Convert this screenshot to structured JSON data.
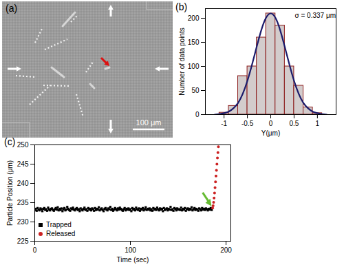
{
  "image": {
    "label": "(a)",
    "scale_bar": "100 μm"
  },
  "chart_data": [
    {
      "type": "histogram",
      "title": "(b)",
      "x_label": "Y(μm)",
      "y_label": "Number of data points",
      "bins": [
        -1.1,
        -0.9,
        -0.7,
        -0.5,
        -0.3,
        -0.1,
        0.1,
        0.3,
        0.5,
        0.7,
        0.9,
        1.1
      ],
      "counts": [
        4,
        18,
        80,
        100,
        160,
        210,
        185,
        100,
        60,
        15,
        3
      ],
      "color": "#d3cccc",
      "fit": {
        "x": [
          -1.2,
          -1.1,
          -1.0,
          -0.9,
          -0.8,
          -0.7,
          -0.6,
          -0.5,
          -0.4,
          -0.3,
          -0.2,
          -0.1,
          0,
          0.1,
          0.2,
          0.3,
          0.4,
          0.5,
          0.6,
          0.7,
          0.8,
          0.9,
          1.0,
          1.1,
          1.2
        ],
        "values": [
          0,
          1,
          3,
          6,
          13,
          24,
          43,
          70,
          104,
          141,
          176,
          201,
          210,
          201,
          176,
          141,
          104,
          70,
          43,
          24,
          13,
          6,
          3,
          1,
          0
        ],
        "color": "#1b1b6b"
      },
      "annotation": "σ = 0.337 μm",
      "xlim": [
        -1.4,
        1.4
      ],
      "xticks": [
        -1,
        -0.5,
        0,
        0.5,
        1
      ],
      "ylim": [
        0,
        220
      ],
      "yticks": [
        0,
        50,
        100,
        150,
        200
      ]
    },
    {
      "type": "scatter",
      "title": "(c)",
      "x_label": "Time (sec)",
      "y_label": "Particle Position (μm)",
      "legend": "lower left",
      "xlim": [
        0,
        205
      ],
      "xticks": [
        0,
        100,
        200
      ],
      "ylim": [
        225,
        250
      ],
      "yticks": [
        225,
        230,
        235,
        240,
        245,
        250
      ],
      "series": [
        {
          "name": "Trapped",
          "color": "#000000",
          "marker": "square",
          "x": [
            0,
            1,
            2,
            3,
            4,
            5,
            6,
            7,
            8,
            9,
            10,
            11,
            12,
            13,
            14,
            15,
            16,
            17,
            18,
            19,
            20,
            21,
            22,
            23,
            24,
            25,
            26,
            27,
            28,
            29,
            30,
            31,
            32,
            33,
            34,
            35,
            36,
            37,
            38,
            39,
            40,
            41,
            42,
            43,
            44,
            45,
            46,
            47,
            48,
            49,
            50,
            51,
            52,
            53,
            54,
            55,
            56,
            57,
            58,
            59,
            60,
            61,
            62,
            63,
            64,
            65,
            66,
            67,
            68,
            69,
            70,
            71,
            72,
            73,
            74,
            75,
            76,
            77,
            78,
            79,
            80,
            81,
            82,
            83,
            84,
            85,
            86,
            87,
            88,
            89,
            90,
            91,
            92,
            93,
            94,
            95,
            96,
            97,
            98,
            99,
            100,
            101,
            102,
            103,
            104,
            105,
            106,
            107,
            108,
            109,
            110,
            111,
            112,
            113,
            114,
            115,
            116,
            117,
            118,
            119,
            120,
            121,
            122,
            123,
            124,
            125,
            126,
            127,
            128,
            129,
            130,
            131,
            132,
            133,
            134,
            135,
            136,
            137,
            138,
            139,
            140,
            141,
            142,
            143,
            144,
            145,
            146,
            147,
            148,
            149,
            150,
            151,
            152,
            153,
            154,
            155,
            156,
            157,
            158,
            159,
            160,
            161,
            162,
            163,
            164,
            165,
            166,
            167,
            168,
            169,
            170,
            171,
            172,
            173,
            174,
            175,
            176,
            177,
            178,
            179,
            180,
            181,
            182,
            183,
            184,
            185
          ],
          "values": [
            233.1,
            233.4,
            232.9,
            233.6,
            233.2,
            233.0,
            233.5,
            233.3,
            232.8,
            233.4,
            233.6,
            233.1,
            233.3,
            232.9,
            233.7,
            233.2,
            233.0,
            233.4,
            233.5,
            233.1,
            232.9,
            233.3,
            233.6,
            233.2,
            233.8,
            233.0,
            233.4,
            233.1,
            233.5,
            232.8,
            233.3,
            233.6,
            233.0,
            233.2,
            233.9,
            233.4,
            233.1,
            232.9,
            233.5,
            233.3,
            233.7,
            233.2,
            233.0,
            233.4,
            233.6,
            233.1,
            233.3,
            232.8,
            233.5,
            233.2,
            233.0,
            233.4,
            233.7,
            233.1,
            233.3,
            232.9,
            233.6,
            233.2,
            233.4,
            233.0,
            233.5,
            233.3,
            232.9,
            233.6,
            233.1,
            233.4,
            233.2,
            233.8,
            233.0,
            233.3,
            233.5,
            233.1,
            232.8,
            233.4,
            233.6,
            233.2,
            233.0,
            233.5,
            233.3,
            233.9,
            233.1,
            233.4,
            232.9,
            233.2,
            233.6,
            233.3,
            233.0,
            233.5,
            233.2,
            233.7,
            233.4,
            233.1,
            232.9,
            233.3,
            233.6,
            233.0,
            233.4,
            233.2,
            233.5,
            233.1,
            233.3,
            232.8,
            233.6,
            233.2,
            233.4,
            233.0,
            233.7,
            233.3,
            233.1,
            233.5,
            232.9,
            233.4,
            233.2,
            233.6,
            233.0,
            233.3,
            233.8,
            233.1,
            233.4,
            233.2,
            233.5,
            233.0,
            233.3,
            232.9,
            233.6,
            233.2,
            233.4,
            233.1,
            233.7,
            233.3,
            233.0,
            233.5,
            233.2,
            233.4,
            232.8,
            233.6,
            233.1,
            233.3,
            233.5,
            233.0,
            233.4,
            233.2,
            233.9,
            233.1,
            233.3,
            232.9,
            233.6,
            233.4,
            233.0,
            233.5,
            233.2,
            233.3,
            233.1,
            233.7,
            233.0,
            233.4,
            233.2,
            233.6,
            232.9,
            233.3,
            233.5,
            233.1,
            233.4,
            233.2,
            233.8,
            233.0,
            233.3,
            233.6,
            233.1,
            233.4,
            233.2,
            232.9,
            233.5,
            233.3,
            233.0,
            233.6,
            233.2,
            233.4,
            233.1,
            233.5,
            233.3,
            233.0,
            233.4,
            233.2,
            233.6,
            233.1
          ]
        },
        {
          "name": "Released",
          "color": "#cc2222",
          "marker": "circle",
          "x": [
            186,
            186.5,
            187,
            187.5,
            188,
            188.5,
            189,
            189.5,
            190,
            190.5,
            191,
            191.5,
            192
          ],
          "values": [
            233.6,
            234.2,
            235.1,
            236.2,
            237.5,
            238.9,
            240.4,
            241.9,
            243.4,
            245.0,
            246.6,
            248.0,
            249.5
          ]
        }
      ]
    }
  ]
}
